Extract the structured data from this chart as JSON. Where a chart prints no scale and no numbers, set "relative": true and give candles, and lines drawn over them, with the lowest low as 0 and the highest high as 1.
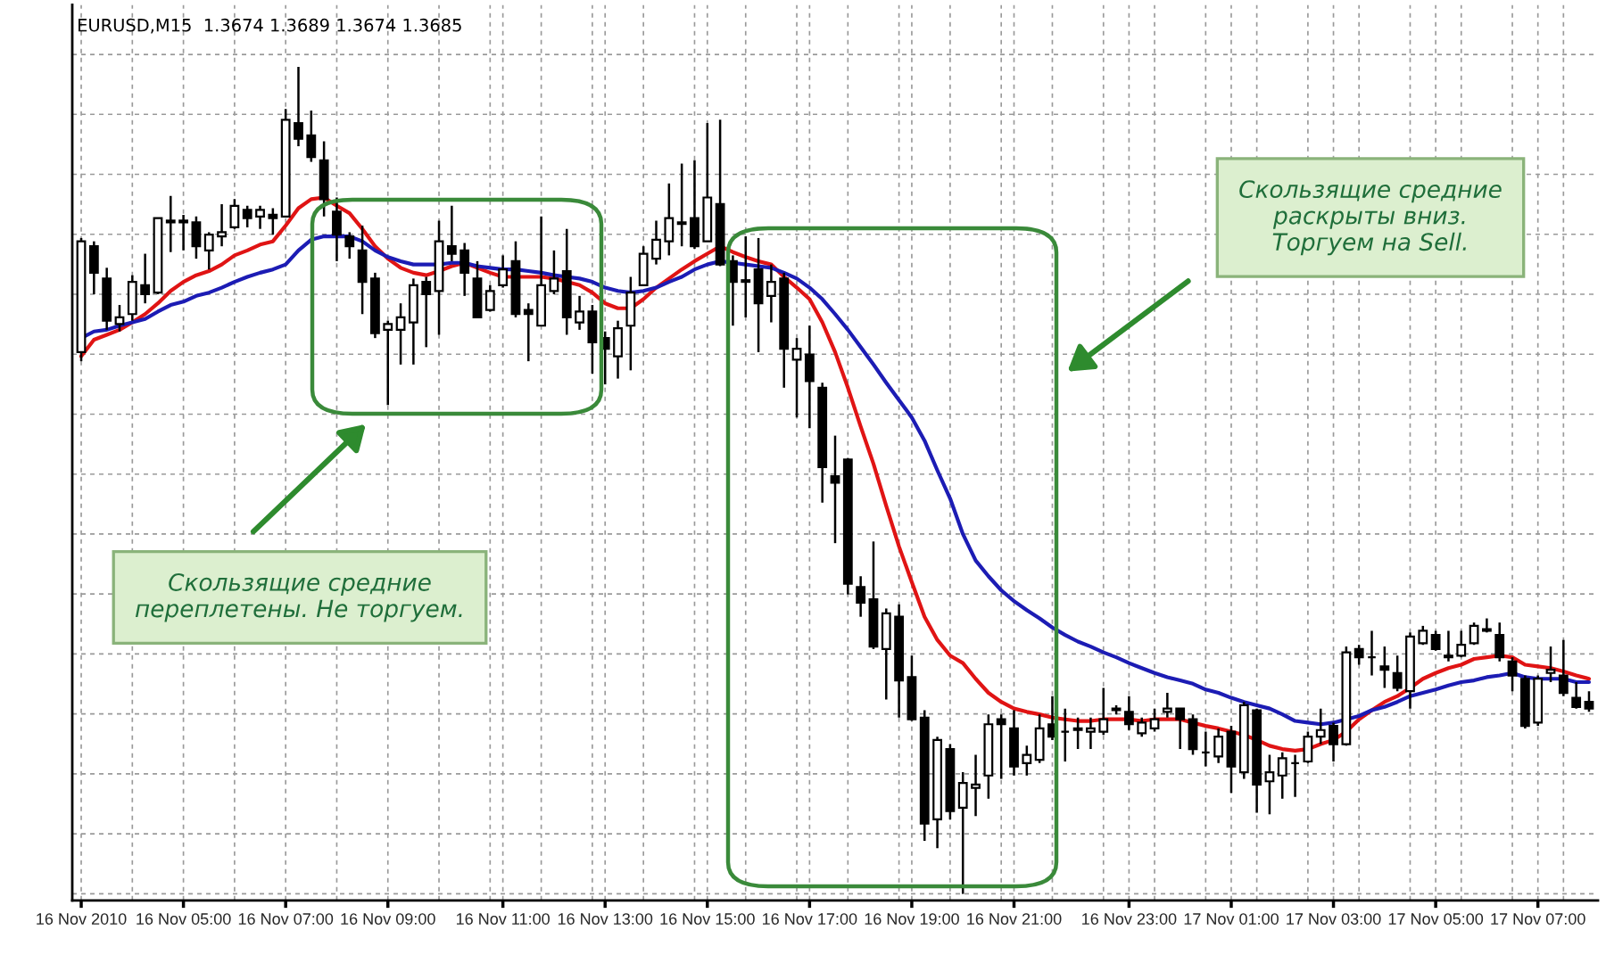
{
  "chart_data": {
    "type": "candlestick",
    "relative": true,
    "grid": true,
    "categories": [
      "16 Nov 2010",
      null,
      null,
      null,
      null,
      null,
      null,
      null,
      "16 Nov 05:00",
      null,
      null,
      null,
      null,
      null,
      null,
      null,
      "16 Nov 07:00",
      null,
      null,
      null,
      null,
      null,
      null,
      null,
      "16 Nov 09:00",
      null,
      null,
      null,
      null,
      null,
      null,
      null,
      null,
      "16 Nov 11:00",
      null,
      null,
      null,
      null,
      null,
      null,
      null,
      "16 Nov 13:00",
      null,
      null,
      null,
      null,
      null,
      null,
      null,
      "16 Nov 15:00",
      null,
      null,
      null,
      null,
      null,
      null,
      null,
      "16 Nov 17:00",
      null,
      null,
      null,
      null,
      null,
      null,
      null,
      "16 Nov 19:00",
      null,
      null,
      null,
      null,
      null,
      null,
      null,
      "16 Nov 21:00",
      null,
      null,
      null,
      null,
      null,
      null,
      null,
      null,
      "16 Nov 23:00",
      null,
      null,
      null,
      null,
      null,
      null,
      null,
      "17 Nov 01:00",
      null,
      null,
      null,
      null,
      null,
      null,
      null,
      "17 Nov 03:00",
      null,
      null,
      null,
      null,
      null,
      null,
      null,
      "17 Nov 05:00",
      null,
      null,
      null,
      null,
      null,
      null,
      null,
      "17 Nov 07:00",
      null,
      null,
      null,
      null
    ],
    "ohlc": [
      [
        0.655,
        0.793,
        0.644,
        0.789
      ],
      [
        0.783,
        0.789,
        0.725,
        0.751
      ],
      [
        0.744,
        0.757,
        0.682,
        0.693
      ],
      [
        0.689,
        0.712,
        0.68,
        0.697
      ],
      [
        0.701,
        0.748,
        0.693,
        0.74
      ],
      [
        0.736,
        0.774,
        0.714,
        0.725
      ],
      [
        0.727,
        0.817,
        0.725,
        0.817
      ],
      [
        0.812,
        0.844,
        0.776,
        0.814
      ],
      [
        0.812,
        0.821,
        0.778,
        0.814
      ],
      [
        0.812,
        0.819,
        0.768,
        0.783
      ],
      [
        0.778,
        0.8,
        0.755,
        0.797
      ],
      [
        0.795,
        0.834,
        0.783,
        0.8
      ],
      [
        0.806,
        0.84,
        0.804,
        0.832
      ],
      [
        0.827,
        0.832,
        0.806,
        0.817
      ],
      [
        0.819,
        0.832,
        0.804,
        0.827
      ],
      [
        0.821,
        0.829,
        0.797,
        0.817
      ],
      [
        0.819,
        0.949,
        0.819,
        0.936
      ],
      [
        0.932,
        1.0,
        0.904,
        0.913
      ],
      [
        0.917,
        0.947,
        0.885,
        0.891
      ],
      [
        0.887,
        0.91,
        0.819,
        0.84
      ],
      [
        0.825,
        0.842,
        0.765,
        0.797
      ],
      [
        0.795,
        0.8,
        0.768,
        0.783
      ],
      [
        0.778,
        0.808,
        0.701,
        0.74
      ],
      [
        0.744,
        0.751,
        0.672,
        0.678
      ],
      [
        0.682,
        0.693,
        0.591,
        0.689
      ],
      [
        0.682,
        0.714,
        0.64,
        0.697
      ],
      [
        0.691,
        0.744,
        0.64,
        0.736
      ],
      [
        0.74,
        0.746,
        0.661,
        0.725
      ],
      [
        0.729,
        0.814,
        0.676,
        0.789
      ],
      [
        0.783,
        0.832,
        0.765,
        0.774
      ],
      [
        0.778,
        0.787,
        0.723,
        0.751
      ],
      [
        0.744,
        0.765,
        0.697,
        0.697
      ],
      [
        0.706,
        0.736,
        0.704,
        0.729
      ],
      [
        0.736,
        0.772,
        0.733,
        0.755
      ],
      [
        0.765,
        0.789,
        0.697,
        0.701
      ],
      [
        0.706,
        0.714,
        0.644,
        0.701
      ],
      [
        0.687,
        0.819,
        0.687,
        0.736
      ],
      [
        0.729,
        0.778,
        0.725,
        0.744
      ],
      [
        0.753,
        0.804,
        0.676,
        0.697
      ],
      [
        0.691,
        0.723,
        0.682,
        0.704
      ],
      [
        0.704,
        0.712,
        0.629,
        0.667
      ],
      [
        0.672,
        0.68,
        0.616,
        0.659
      ],
      [
        0.65,
        0.693,
        0.623,
        0.684
      ],
      [
        0.687,
        0.746,
        0.633,
        0.727
      ],
      [
        0.736,
        0.783,
        0.736,
        0.774
      ],
      [
        0.768,
        0.814,
        0.761,
        0.791
      ],
      [
        0.789,
        0.859,
        0.772,
        0.817
      ],
      [
        0.81,
        0.883,
        0.783,
        0.812
      ],
      [
        0.817,
        0.887,
        0.78,
        0.783
      ],
      [
        0.789,
        0.932,
        0.789,
        0.842
      ],
      [
        0.834,
        0.936,
        0.759,
        0.761
      ],
      [
        0.765,
        0.772,
        0.687,
        0.74
      ],
      [
        0.74,
        0.795,
        0.697,
        0.742
      ],
      [
        0.755,
        0.793,
        0.655,
        0.714
      ],
      [
        0.723,
        0.761,
        0.691,
        0.74
      ],
      [
        0.744,
        0.751,
        0.612,
        0.659
      ],
      [
        0.646,
        0.672,
        0.576,
        0.659
      ],
      [
        0.652,
        0.687,
        0.563,
        0.62
      ],
      [
        0.612,
        0.618,
        0.473,
        0.516
      ],
      [
        0.505,
        0.554,
        0.424,
        0.497
      ],
      [
        0.525,
        0.527,
        0.362,
        0.375
      ],
      [
        0.371,
        0.384,
        0.335,
        0.352
      ],
      [
        0.356,
        0.426,
        0.296,
        0.299
      ],
      [
        0.296,
        0.345,
        0.235,
        0.339
      ],
      [
        0.335,
        0.35,
        0.213,
        0.258
      ],
      [
        0.262,
        0.288,
        0.209,
        0.211
      ],
      [
        0.213,
        0.222,
        0.064,
        0.085
      ],
      [
        0.09,
        0.19,
        0.055,
        0.186
      ],
      [
        0.175,
        0.181,
        0.09,
        0.1
      ],
      [
        0.104,
        0.147,
        0.0,
        0.134
      ],
      [
        0.128,
        0.168,
        0.094,
        0.132
      ],
      [
        0.143,
        0.217,
        0.115,
        0.205
      ],
      [
        0.211,
        0.217,
        0.139,
        0.205
      ],
      [
        0.2,
        0.222,
        0.143,
        0.154
      ],
      [
        0.158,
        0.179,
        0.143,
        0.168
      ],
      [
        0.162,
        0.217,
        0.158,
        0.2
      ],
      [
        0.205,
        0.239,
        0.186,
        0.19
      ],
      [
        0.196,
        0.224,
        0.16,
        0.196
      ],
      [
        0.198,
        0.213,
        0.175,
        0.2
      ],
      [
        0.196,
        0.213,
        0.175,
        0.2
      ],
      [
        0.196,
        0.249,
        0.192,
        0.211
      ],
      [
        0.222,
        0.228,
        0.217,
        0.224
      ],
      [
        0.22,
        0.239,
        0.198,
        0.205
      ],
      [
        0.194,
        0.213,
        0.19,
        0.207
      ],
      [
        0.2,
        0.224,
        0.196,
        0.211
      ],
      [
        0.22,
        0.243,
        0.213,
        0.224
      ],
      [
        0.224,
        0.224,
        0.175,
        0.211
      ],
      [
        0.211,
        0.217,
        0.168,
        0.175
      ],
      [
        0.171,
        0.196,
        0.154,
        0.171
      ],
      [
        0.166,
        0.2,
        0.158,
        0.19
      ],
      [
        0.196,
        0.203,
        0.122,
        0.154
      ],
      [
        0.147,
        0.232,
        0.139,
        0.228
      ],
      [
        0.222,
        0.224,
        0.098,
        0.132
      ],
      [
        0.136,
        0.168,
        0.096,
        0.147
      ],
      [
        0.143,
        0.171,
        0.115,
        0.164
      ],
      [
        0.158,
        0.168,
        0.117,
        0.158
      ],
      [
        0.16,
        0.196,
        0.158,
        0.19
      ],
      [
        0.19,
        0.224,
        0.181,
        0.198
      ],
      [
        0.203,
        0.207,
        0.16,
        0.181
      ],
      [
        0.181,
        0.299,
        0.179,
        0.292
      ],
      [
        0.296,
        0.301,
        0.277,
        0.286
      ],
      [
        0.286,
        0.318,
        0.264,
        0.286
      ],
      [
        0.275,
        0.299,
        0.249,
        0.271
      ],
      [
        0.267,
        0.288,
        0.245,
        0.249
      ],
      [
        0.245,
        0.316,
        0.224,
        0.311
      ],
      [
        0.303,
        0.324,
        0.301,
        0.318
      ],
      [
        0.313,
        0.318,
        0.294,
        0.296
      ],
      [
        0.288,
        0.318,
        0.281,
        0.286
      ],
      [
        0.288,
        0.318,
        0.286,
        0.301
      ],
      [
        0.303,
        0.328,
        0.301,
        0.324
      ],
      [
        0.318,
        0.333,
        0.316,
        0.32
      ],
      [
        0.313,
        0.328,
        0.281,
        0.286
      ],
      [
        0.281,
        0.286,
        0.245,
        0.264
      ],
      [
        0.26,
        0.264,
        0.2,
        0.203
      ],
      [
        0.207,
        0.264,
        0.203,
        0.26
      ],
      [
        0.267,
        0.299,
        0.256,
        0.271
      ],
      [
        0.264,
        0.307,
        0.239,
        0.243
      ],
      [
        0.237,
        0.256,
        0.224,
        0.226
      ],
      [
        0.232,
        0.245,
        0.22,
        0.224
      ]
    ],
    "series": [
      {
        "type": "line",
        "color": "#e01414",
        "values": [
          0.65,
          0.67,
          0.676,
          0.682,
          0.691,
          0.701,
          0.714,
          0.729,
          0.74,
          0.748,
          0.753,
          0.761,
          0.772,
          0.778,
          0.785,
          0.789,
          0.808,
          0.829,
          0.84,
          0.842,
          0.832,
          0.823,
          0.804,
          0.783,
          0.768,
          0.757,
          0.751,
          0.748,
          0.753,
          0.759,
          0.763,
          0.757,
          0.751,
          0.746,
          0.746,
          0.746,
          0.746,
          0.744,
          0.74,
          0.736,
          0.727,
          0.714,
          0.708,
          0.708,
          0.719,
          0.733,
          0.744,
          0.755,
          0.765,
          0.774,
          0.783,
          0.776,
          0.77,
          0.765,
          0.761,
          0.746,
          0.733,
          0.719,
          0.691,
          0.655,
          0.612,
          0.565,
          0.52,
          0.469,
          0.42,
          0.377,
          0.335,
          0.307,
          0.288,
          0.279,
          0.26,
          0.243,
          0.232,
          0.224,
          0.22,
          0.217,
          0.213,
          0.211,
          0.209,
          0.209,
          0.211,
          0.211,
          0.211,
          0.209,
          0.211,
          0.211,
          0.211,
          0.207,
          0.203,
          0.2,
          0.196,
          0.192,
          0.186,
          0.179,
          0.175,
          0.173,
          0.175,
          0.181,
          0.186,
          0.196,
          0.211,
          0.222,
          0.232,
          0.239,
          0.249,
          0.26,
          0.267,
          0.273,
          0.277,
          0.284,
          0.286,
          0.288,
          0.286,
          0.277,
          0.275,
          0.273,
          0.269,
          0.264,
          0.26
        ]
      },
      {
        "type": "line",
        "color": "#1c1cb4",
        "values": [
          0.672,
          0.68,
          0.682,
          0.687,
          0.691,
          0.695,
          0.704,
          0.712,
          0.716,
          0.723,
          0.727,
          0.733,
          0.74,
          0.746,
          0.751,
          0.755,
          0.761,
          0.778,
          0.791,
          0.795,
          0.795,
          0.795,
          0.789,
          0.778,
          0.77,
          0.765,
          0.761,
          0.761,
          0.761,
          0.763,
          0.763,
          0.759,
          0.757,
          0.755,
          0.755,
          0.753,
          0.751,
          0.748,
          0.746,
          0.744,
          0.74,
          0.733,
          0.729,
          0.727,
          0.729,
          0.733,
          0.74,
          0.746,
          0.755,
          0.761,
          0.765,
          0.763,
          0.761,
          0.759,
          0.757,
          0.751,
          0.744,
          0.733,
          0.719,
          0.701,
          0.682,
          0.661,
          0.64,
          0.618,
          0.597,
          0.576,
          0.548,
          0.512,
          0.478,
          0.435,
          0.403,
          0.384,
          0.367,
          0.354,
          0.343,
          0.333,
          0.322,
          0.313,
          0.305,
          0.299,
          0.292,
          0.286,
          0.279,
          0.273,
          0.267,
          0.262,
          0.258,
          0.254,
          0.247,
          0.243,
          0.237,
          0.232,
          0.228,
          0.224,
          0.217,
          0.209,
          0.207,
          0.205,
          0.207,
          0.211,
          0.215,
          0.222,
          0.226,
          0.232,
          0.239,
          0.243,
          0.247,
          0.252,
          0.256,
          0.258,
          0.262,
          0.264,
          0.267,
          0.262,
          0.26,
          0.26,
          0.26,
          0.256,
          0.256
        ]
      }
    ],
    "annotations": [
      "EURUSD,M15  1.3674 1.3689 1.3674 1.3685",
      "Скользящие средние\nпереплетены. Не торгуем.",
      "Скользящие средние\nраскрыты вниз.\nТоргуем на Sell."
    ]
  }
}
